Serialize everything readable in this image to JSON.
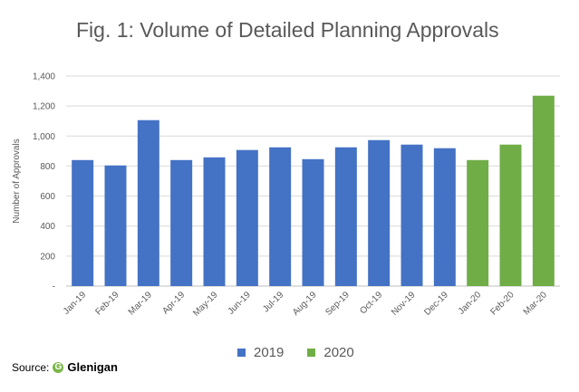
{
  "chart_data": {
    "type": "bar",
    "title": "Fig. 1: Volume of Detailed Planning Approvals",
    "xlabel": "",
    "ylabel": "Number of Approvals",
    "ylim": [
      0,
      1400
    ],
    "yticks": [
      0,
      200,
      400,
      600,
      800,
      1000,
      1200,
      1400
    ],
    "ytick_labels": [
      "-",
      "200",
      "400",
      "600",
      "800",
      "1,000",
      "1,200",
      "1,400"
    ],
    "grid": true,
    "legend_position": "bottom",
    "categories": [
      "Jan-19",
      "Feb-19",
      "Mar-19",
      "Apr-19",
      "May-19",
      "Jun-19",
      "Jul-19",
      "Aug-19",
      "Sep-19",
      "Oct-19",
      "Nov-19",
      "Dec-19",
      "Jan-20",
      "Feb-20",
      "Mar-20"
    ],
    "values": [
      840,
      804,
      1106,
      840,
      858,
      907,
      925,
      846,
      925,
      973,
      943,
      919,
      840,
      943,
      1269
    ],
    "series_of_category": [
      "2019",
      "2019",
      "2019",
      "2019",
      "2019",
      "2019",
      "2019",
      "2019",
      "2019",
      "2019",
      "2019",
      "2019",
      "2020",
      "2020",
      "2020"
    ],
    "series": [
      {
        "name": "2019",
        "color": "#4472c4"
      },
      {
        "name": "2020",
        "color": "#70ad47"
      }
    ]
  },
  "source": {
    "label": "Source:",
    "logo_letter": "G",
    "logo_text": "Glenigan"
  }
}
